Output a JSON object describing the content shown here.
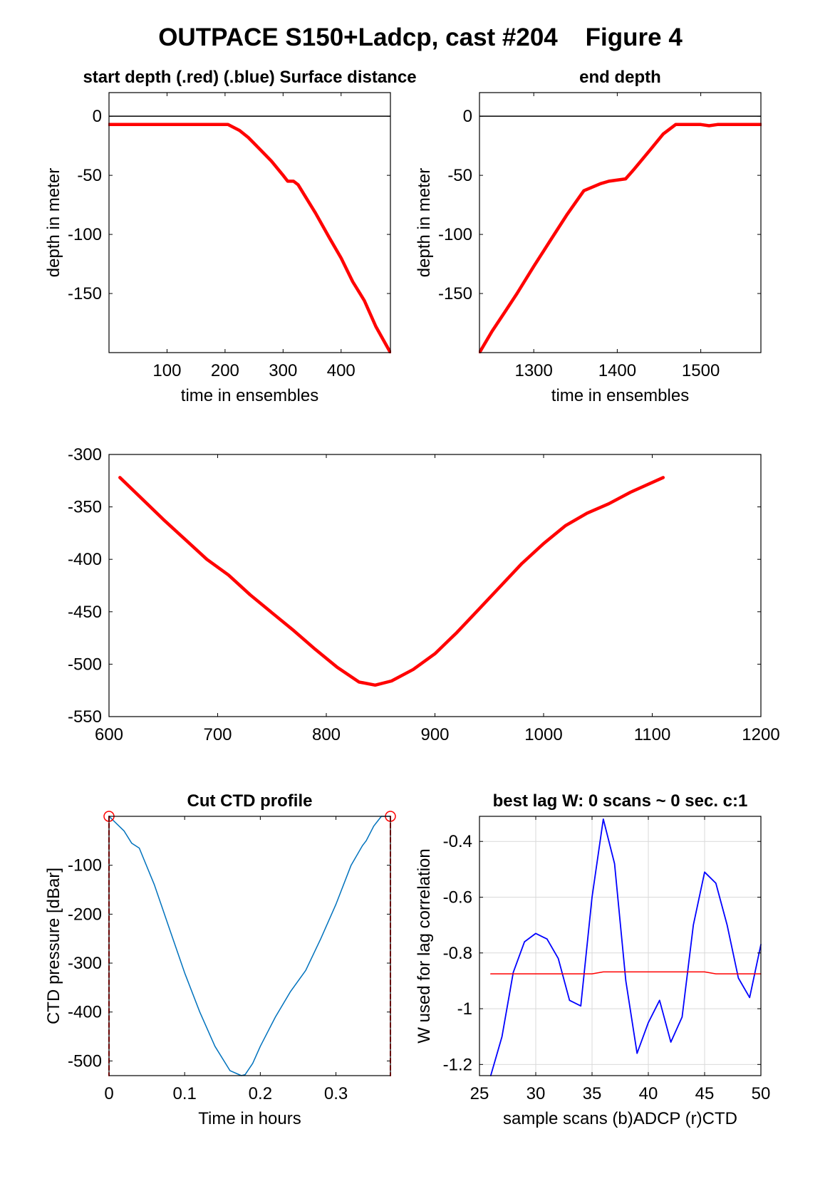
{
  "figure": {
    "title": "OUTPACE S150+Ladcp, cast #204    Figure 4"
  },
  "colors": {
    "red": "#ff0000",
    "blue": "#0000ff",
    "ctd_blue": "#0072bd",
    "black": "#000000",
    "grid": "#d9d9d9"
  },
  "chart_data": [
    {
      "type": "line",
      "title": "start depth (.red) (.blue) Surface distance",
      "xlabel": "time in ensembles",
      "ylabel": "depth in meter",
      "xlim": [
        0,
        485
      ],
      "ylim": [
        -200,
        20
      ],
      "xticks": [
        100,
        200,
        300,
        400
      ],
      "yticks": [
        0,
        -50,
        -100,
        -150
      ],
      "grid": false,
      "reference_lines": [
        {
          "axis": "y",
          "value": 0,
          "color": "black"
        }
      ],
      "series": [
        {
          "color": "red",
          "x": [
            0,
            50,
            100,
            150,
            205,
            225,
            240,
            260,
            280,
            300,
            308,
            318,
            326,
            336,
            356,
            380,
            400,
            420,
            440,
            460,
            485
          ],
          "y": [
            -7,
            -7,
            -7,
            -7,
            -7,
            -12,
            -18,
            -28,
            -38,
            -50,
            -55,
            -55,
            -58,
            -66,
            -82,
            -103,
            -120,
            -140,
            -156,
            -178,
            -200
          ]
        }
      ]
    },
    {
      "type": "line",
      "title": "end depth",
      "xlabel": "time in ensembles",
      "ylabel": "depth in meter",
      "xlim": [
        1235,
        1572
      ],
      "ylim": [
        -200,
        20
      ],
      "xticks": [
        1300,
        1400,
        1500
      ],
      "yticks": [
        0,
        -50,
        -100,
        -150
      ],
      "grid": false,
      "reference_lines": [
        {
          "axis": "y",
          "value": 0,
          "color": "black"
        }
      ],
      "series": [
        {
          "color": "red",
          "x": [
            1235,
            1250,
            1265,
            1280,
            1300,
            1320,
            1340,
            1360,
            1380,
            1390,
            1410,
            1420,
            1440,
            1455,
            1470,
            1490,
            1500,
            1510,
            1520,
            1540,
            1572
          ],
          "y": [
            -200,
            -182,
            -166,
            -150,
            -127,
            -105,
            -83,
            -63,
            -57,
            -55,
            -53,
            -45,
            -28,
            -15,
            -7,
            -7,
            -7,
            -8,
            -7,
            -7,
            -7
          ]
        }
      ]
    },
    {
      "type": "line",
      "title": "",
      "xlabel": "",
      "ylabel": "",
      "xlim": [
        600,
        1200
      ],
      "ylim": [
        -550,
        -300
      ],
      "xticks": [
        600,
        700,
        800,
        900,
        1000,
        1100,
        1200
      ],
      "yticks": [
        -300,
        -350,
        -400,
        -450,
        -500,
        -550
      ],
      "grid": false,
      "series": [
        {
          "color": "red",
          "x": [
            610,
            630,
            650,
            670,
            690,
            710,
            730,
            750,
            770,
            790,
            810,
            830,
            845,
            860,
            880,
            900,
            920,
            940,
            960,
            980,
            1000,
            1020,
            1040,
            1060,
            1080,
            1110
          ],
          "y": [
            -322,
            -342,
            -362,
            -381,
            -400,
            -415,
            -434,
            -451,
            -468,
            -486,
            -503,
            -517,
            -520,
            -516,
            -505,
            -490,
            -470,
            -448,
            -426,
            -404,
            -385,
            -368,
            -356,
            -347,
            -336,
            -322
          ]
        }
      ]
    },
    {
      "type": "line",
      "title": "Cut CTD profile",
      "xlabel": "Time in hours",
      "ylabel": "CTD pressure [dBar]",
      "xlim": [
        0,
        0.372
      ],
      "ylim": [
        -530,
        0
      ],
      "xticks": [
        0,
        0.1,
        0.2,
        0.3
      ],
      "yticks": [
        -100,
        -200,
        -300,
        -400,
        -500
      ],
      "grid": false,
      "series": [
        {
          "color": "ctd_blue",
          "x": [
            0,
            0.02,
            0.03,
            0.04,
            0.06,
            0.08,
            0.1,
            0.12,
            0.14,
            0.16,
            0.175,
            0.18,
            0.19,
            0.2,
            0.22,
            0.24,
            0.26,
            0.28,
            0.3,
            0.32,
            0.335,
            0.34,
            0.35,
            0.36,
            0.372
          ],
          "y": [
            0,
            -30,
            -55,
            -65,
            -140,
            -230,
            -320,
            -400,
            -470,
            -520,
            -530,
            -528,
            -505,
            -470,
            -410,
            -358,
            -315,
            -250,
            -180,
            -100,
            -60,
            -50,
            -20,
            0,
            0
          ]
        },
        {
          "color": "red",
          "style": "dashed",
          "x": [
            0,
            0
          ],
          "y": [
            0,
            -530
          ]
        },
        {
          "color": "red",
          "style": "dashed",
          "x": [
            0.372,
            0.372
          ],
          "y": [
            0,
            -530
          ]
        },
        {
          "color": "red",
          "style": "circle-markers",
          "x": [
            0,
            0.372
          ],
          "y": [
            0,
            0
          ]
        }
      ]
    },
    {
      "type": "line",
      "title": "best lag W: 0 scans ~ 0 sec.  c:1",
      "xlabel": "sample scans (b)ADCP (r)CTD",
      "ylabel": "W used for lag correlation",
      "xlim": [
        25,
        50
      ],
      "ylim": [
        -1.24,
        -0.31
      ],
      "xticks": [
        25,
        30,
        35,
        40,
        45,
        50
      ],
      "yticks": [
        -0.4,
        -0.6,
        -0.8,
        -1,
        -1.2
      ],
      "grid": true,
      "series": [
        {
          "color": "blue",
          "x": [
            26,
            27,
            28,
            29,
            30,
            31,
            32,
            33,
            34,
            35,
            36,
            37,
            38,
            39,
            40,
            41,
            42,
            43,
            44,
            45,
            46,
            47,
            48,
            49,
            50
          ],
          "y": [
            -1.24,
            -1.1,
            -0.87,
            -0.76,
            -0.73,
            -0.75,
            -0.82,
            -0.97,
            -0.99,
            -0.6,
            -0.32,
            -0.48,
            -0.9,
            -1.16,
            -1.05,
            -0.97,
            -1.12,
            -1.03,
            -0.7,
            -0.51,
            -0.55,
            -0.7,
            -0.89,
            -0.96,
            -0.77
          ]
        },
        {
          "color": "red",
          "x": [
            26,
            28,
            30,
            32,
            34,
            35,
            36,
            38,
            40,
            42,
            44,
            45,
            46,
            48,
            50
          ],
          "y": [
            -0.875,
            -0.875,
            -0.875,
            -0.875,
            -0.875,
            -0.875,
            -0.868,
            -0.868,
            -0.868,
            -0.868,
            -0.868,
            -0.868,
            -0.875,
            -0.875,
            -0.875
          ]
        }
      ]
    }
  ]
}
